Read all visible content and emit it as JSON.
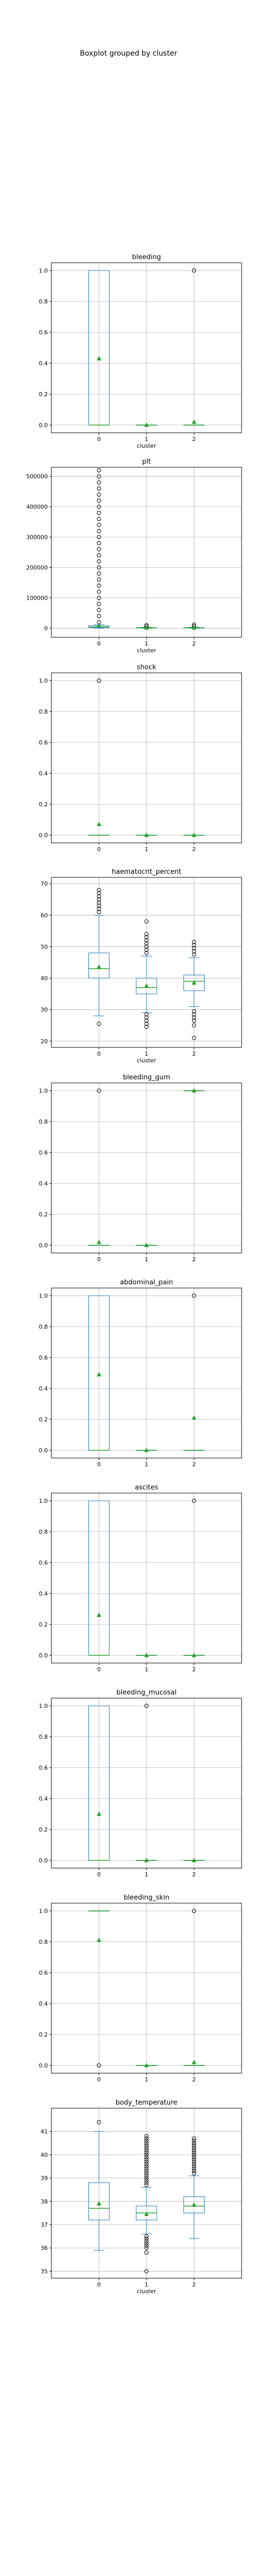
{
  "figure": {
    "suptitle": "Boxplot grouped by cluster"
  },
  "colors": {
    "box": "#1f77b4",
    "median": "#2ca02c",
    "mean": "#2ca02c",
    "grid": "#b0b0b0",
    "axes": "#000000",
    "flier": "#000000"
  },
  "chart_data": [
    {
      "type": "box",
      "title": "bleeding",
      "xlabel": "cluster",
      "ylabel": "",
      "categories": [
        "0",
        "1",
        "2"
      ],
      "ylim": [
        -0.05,
        1.05
      ],
      "yticks": [
        0.0,
        0.2,
        0.4,
        0.6,
        0.8,
        1.0
      ],
      "ytick_labels": [
        "0.0",
        "0.2",
        "0.4",
        "0.6",
        "0.8",
        "1.0"
      ],
      "grid": true,
      "boxes": [
        {
          "whislo": 0,
          "q1": 0,
          "med": 0,
          "q3": 1,
          "whishi": 1,
          "mean": 0.43,
          "fliers": []
        },
        {
          "whislo": 0,
          "q1": 0,
          "med": 0,
          "q3": 0,
          "whishi": 0,
          "mean": 0.0,
          "fliers": []
        },
        {
          "whislo": 0,
          "q1": 0,
          "med": 0,
          "q3": 0,
          "whishi": 0,
          "mean": 0.02,
          "fliers": [
            1.0
          ]
        }
      ]
    },
    {
      "type": "box",
      "title": "plt",
      "xlabel": "cluster",
      "ylabel": "",
      "categories": [
        "0",
        "1",
        "2"
      ],
      "ylim": [
        -30000,
        530000
      ],
      "yticks": [
        0,
        100000,
        200000,
        300000,
        400000,
        500000
      ],
      "ytick_labels": [
        "0",
        "100000",
        "200000",
        "300000",
        "400000",
        "500000"
      ],
      "grid": true,
      "boxes": [
        {
          "whislo": 0,
          "q1": 2000,
          "med": 4000,
          "q3": 8000,
          "whishi": 12000,
          "mean": 9000,
          "fliers": [
            20000,
            40000,
            60000,
            80000,
            100000,
            120000,
            140000,
            160000,
            180000,
            200000,
            220000,
            240000,
            260000,
            280000,
            300000,
            320000,
            340000,
            360000,
            380000,
            400000,
            420000,
            440000,
            460000,
            480000,
            500000,
            520000
          ]
        },
        {
          "whislo": 0,
          "q1": 500,
          "med": 1000,
          "q3": 2000,
          "whishi": 3000,
          "mean": 1200,
          "fliers": [
            6000,
            10000
          ]
        },
        {
          "whislo": 0,
          "q1": 500,
          "med": 1000,
          "q3": 2000,
          "whishi": 3000,
          "mean": 1500,
          "fliers": [
            7000,
            12000
          ]
        }
      ]
    },
    {
      "type": "box",
      "title": "shock",
      "xlabel": "",
      "ylabel": "",
      "categories": [
        "0",
        "1",
        "2"
      ],
      "ylim": [
        -0.05,
        1.05
      ],
      "yticks": [
        0.0,
        0.2,
        0.4,
        0.6,
        0.8,
        1.0
      ],
      "ytick_labels": [
        "0.0",
        "0.2",
        "0.4",
        "0.6",
        "0.8",
        "1.0"
      ],
      "grid": true,
      "boxes": [
        {
          "whislo": 0,
          "q1": 0,
          "med": 0,
          "q3": 0,
          "whishi": 0,
          "mean": 0.07,
          "fliers": [
            1.0
          ]
        },
        {
          "whislo": 0,
          "q1": 0,
          "med": 0,
          "q3": 0,
          "whishi": 0,
          "mean": 0.0,
          "fliers": []
        },
        {
          "whislo": 0,
          "q1": 0,
          "med": 0,
          "q3": 0,
          "whishi": 0,
          "mean": 0.0,
          "fliers": []
        }
      ]
    },
    {
      "type": "box",
      "title": "haematocrit_percent",
      "xlabel": "cluster",
      "ylabel": "",
      "categories": [
        "0",
        "1",
        "2"
      ],
      "ylim": [
        18,
        72
      ],
      "yticks": [
        20,
        30,
        40,
        50,
        60,
        70
      ],
      "ytick_labels": [
        "20",
        "30",
        "40",
        "50",
        "60",
        "70"
      ],
      "grid": true,
      "boxes": [
        {
          "whislo": 28,
          "q1": 40,
          "med": 43,
          "q3": 48,
          "whishi": 60,
          "mean": 43.5,
          "fliers": [
            25.5,
            61,
            62,
            63,
            64,
            65,
            66,
            67,
            68
          ]
        },
        {
          "whislo": 29,
          "q1": 35,
          "med": 37,
          "q3": 40,
          "whishi": 47,
          "mean": 37.5,
          "fliers": [
            24.5,
            25.5,
            26.5,
            27.5,
            28.5,
            48,
            49,
            50,
            51,
            52,
            53,
            54,
            58
          ]
        },
        {
          "whislo": 31,
          "q1": 36,
          "med": 39,
          "q3": 41,
          "whishi": 46.5,
          "mean": 38.5,
          "fliers": [
            21,
            25,
            26.5,
            27.5,
            28.5,
            29.5,
            47.5,
            48.5,
            49.5,
            50.5,
            51.5
          ]
        }
      ]
    },
    {
      "type": "box",
      "title": "bleeding_gum",
      "xlabel": "",
      "ylabel": "",
      "categories": [
        "0",
        "1",
        "2"
      ],
      "ylim": [
        -0.05,
        1.05
      ],
      "yticks": [
        0.0,
        0.2,
        0.4,
        0.6,
        0.8,
        1.0
      ],
      "ytick_labels": [
        "0.0",
        "0.2",
        "0.4",
        "0.6",
        "0.8",
        "1.0"
      ],
      "grid": true,
      "boxes": [
        {
          "whislo": 0,
          "q1": 0,
          "med": 0,
          "q3": 0,
          "whishi": 0,
          "mean": 0.02,
          "fliers": [
            1.0
          ]
        },
        {
          "whislo": 0,
          "q1": 0,
          "med": 0,
          "q3": 0,
          "whishi": 0,
          "mean": 0.0,
          "fliers": []
        },
        {
          "whislo": 1,
          "q1": 1,
          "med": 1,
          "q3": 1,
          "whishi": 1,
          "mean": 1.0,
          "fliers": []
        }
      ]
    },
    {
      "type": "box",
      "title": "abdominal_pain",
      "xlabel": "",
      "ylabel": "",
      "categories": [
        "0",
        "1",
        "2"
      ],
      "ylim": [
        -0.05,
        1.05
      ],
      "yticks": [
        0.0,
        0.2,
        0.4,
        0.6,
        0.8,
        1.0
      ],
      "ytick_labels": [
        "0.0",
        "0.2",
        "0.4",
        "0.6",
        "0.8",
        "1.0"
      ],
      "grid": true,
      "boxes": [
        {
          "whislo": 0,
          "q1": 0,
          "med": 0,
          "q3": 1,
          "whishi": 1,
          "mean": 0.49,
          "fliers": []
        },
        {
          "whislo": 0,
          "q1": 0,
          "med": 0,
          "q3": 0,
          "whishi": 0,
          "mean": 0.0,
          "fliers": []
        },
        {
          "whislo": 0,
          "q1": 0,
          "med": 0,
          "q3": 0,
          "whishi": 0,
          "mean": 0.21,
          "fliers": [
            1.0
          ]
        }
      ]
    },
    {
      "type": "box",
      "title": "ascites",
      "xlabel": "",
      "ylabel": "",
      "categories": [
        "0",
        "1",
        "2"
      ],
      "ylim": [
        -0.05,
        1.05
      ],
      "yticks": [
        0.0,
        0.2,
        0.4,
        0.6,
        0.8,
        1.0
      ],
      "ytick_labels": [
        "0.0",
        "0.2",
        "0.4",
        "0.6",
        "0.8",
        "1.0"
      ],
      "grid": true,
      "boxes": [
        {
          "whislo": 0,
          "q1": 0,
          "med": 0,
          "q3": 1,
          "whishi": 1,
          "mean": 0.26,
          "fliers": []
        },
        {
          "whislo": 0,
          "q1": 0,
          "med": 0,
          "q3": 0,
          "whishi": 0,
          "mean": 0.0,
          "fliers": []
        },
        {
          "whislo": 0,
          "q1": 0,
          "med": 0,
          "q3": 0,
          "whishi": 0,
          "mean": 0.0,
          "fliers": [
            1.0
          ]
        }
      ]
    },
    {
      "type": "box",
      "title": "bleeding_mucosal",
      "xlabel": "",
      "ylabel": "",
      "categories": [
        "0",
        "1",
        "2"
      ],
      "ylim": [
        -0.05,
        1.05
      ],
      "yticks": [
        0.0,
        0.2,
        0.4,
        0.6,
        0.8,
        1.0
      ],
      "ytick_labels": [
        "0.0",
        "0.2",
        "0.4",
        "0.6",
        "0.8",
        "1.0"
      ],
      "grid": true,
      "boxes": [
        {
          "whislo": 0,
          "q1": 0,
          "med": 0,
          "q3": 1,
          "whishi": 1,
          "mean": 0.3,
          "fliers": []
        },
        {
          "whislo": 0,
          "q1": 0,
          "med": 0,
          "q3": 0,
          "whishi": 0,
          "mean": 0.0,
          "fliers": [
            1.0
          ]
        },
        {
          "whislo": 0,
          "q1": 0,
          "med": 0,
          "q3": 0,
          "whishi": 0,
          "mean": 0.0,
          "fliers": []
        }
      ]
    },
    {
      "type": "box",
      "title": "bleeding_skin",
      "xlabel": "",
      "ylabel": "",
      "categories": [
        "0",
        "1",
        "2"
      ],
      "ylim": [
        -0.05,
        1.05
      ],
      "yticks": [
        0.0,
        0.2,
        0.4,
        0.6,
        0.8,
        1.0
      ],
      "ytick_labels": [
        "0.0",
        "0.2",
        "0.4",
        "0.6",
        "0.8",
        "1.0"
      ],
      "grid": true,
      "boxes": [
        {
          "whislo": 1,
          "q1": 1,
          "med": 1,
          "q3": 1,
          "whishi": 1,
          "mean": 0.81,
          "fliers": [
            0.0
          ]
        },
        {
          "whislo": 0,
          "q1": 0,
          "med": 0,
          "q3": 0,
          "whishi": 0,
          "mean": 0.0,
          "fliers": []
        },
        {
          "whislo": 0,
          "q1": 0,
          "med": 0,
          "q3": 0,
          "whishi": 0,
          "mean": 0.02,
          "fliers": [
            1.0
          ]
        }
      ]
    },
    {
      "type": "box",
      "title": "body_temperature",
      "xlabel": "cluster",
      "ylabel": "",
      "categories": [
        "0",
        "1",
        "2"
      ],
      "ylim": [
        34.7,
        42.0
      ],
      "yticks": [
        35,
        36,
        37,
        38,
        39,
        40,
        41
      ],
      "ytick_labels": [
        "35",
        "36",
        "37",
        "38",
        "39",
        "40",
        "41"
      ],
      "grid": true,
      "boxes": [
        {
          "whislo": 35.9,
          "q1": 37.2,
          "med": 37.7,
          "q3": 38.8,
          "whishi": 41.0,
          "mean": 37.9,
          "fliers": [
            41.4
          ]
        },
        {
          "whislo": 36.6,
          "q1": 37.2,
          "med": 37.5,
          "q3": 37.8,
          "whishi": 38.6,
          "mean": 37.45,
          "fliers": [
            35.0,
            35.8,
            36.0,
            36.1,
            36.2,
            36.3,
            36.4,
            36.5,
            38.7,
            38.8,
            38.9,
            39.0,
            39.1,
            39.2,
            39.3,
            39.4,
            39.5,
            39.6,
            39.7,
            39.8,
            39.9,
            40.0,
            40.1,
            40.2,
            40.3,
            40.4,
            40.5,
            40.6,
            40.7,
            40.8
          ]
        },
        {
          "whislo": 36.4,
          "q1": 37.5,
          "med": 37.8,
          "q3": 38.2,
          "whishi": 39.1,
          "mean": 37.85,
          "fliers": [
            39.2,
            39.3,
            39.4,
            39.5,
            39.6,
            39.7,
            39.8,
            39.9,
            40.0,
            40.1,
            40.2,
            40.3,
            40.4,
            40.5,
            40.6,
            40.7
          ]
        }
      ]
    }
  ]
}
